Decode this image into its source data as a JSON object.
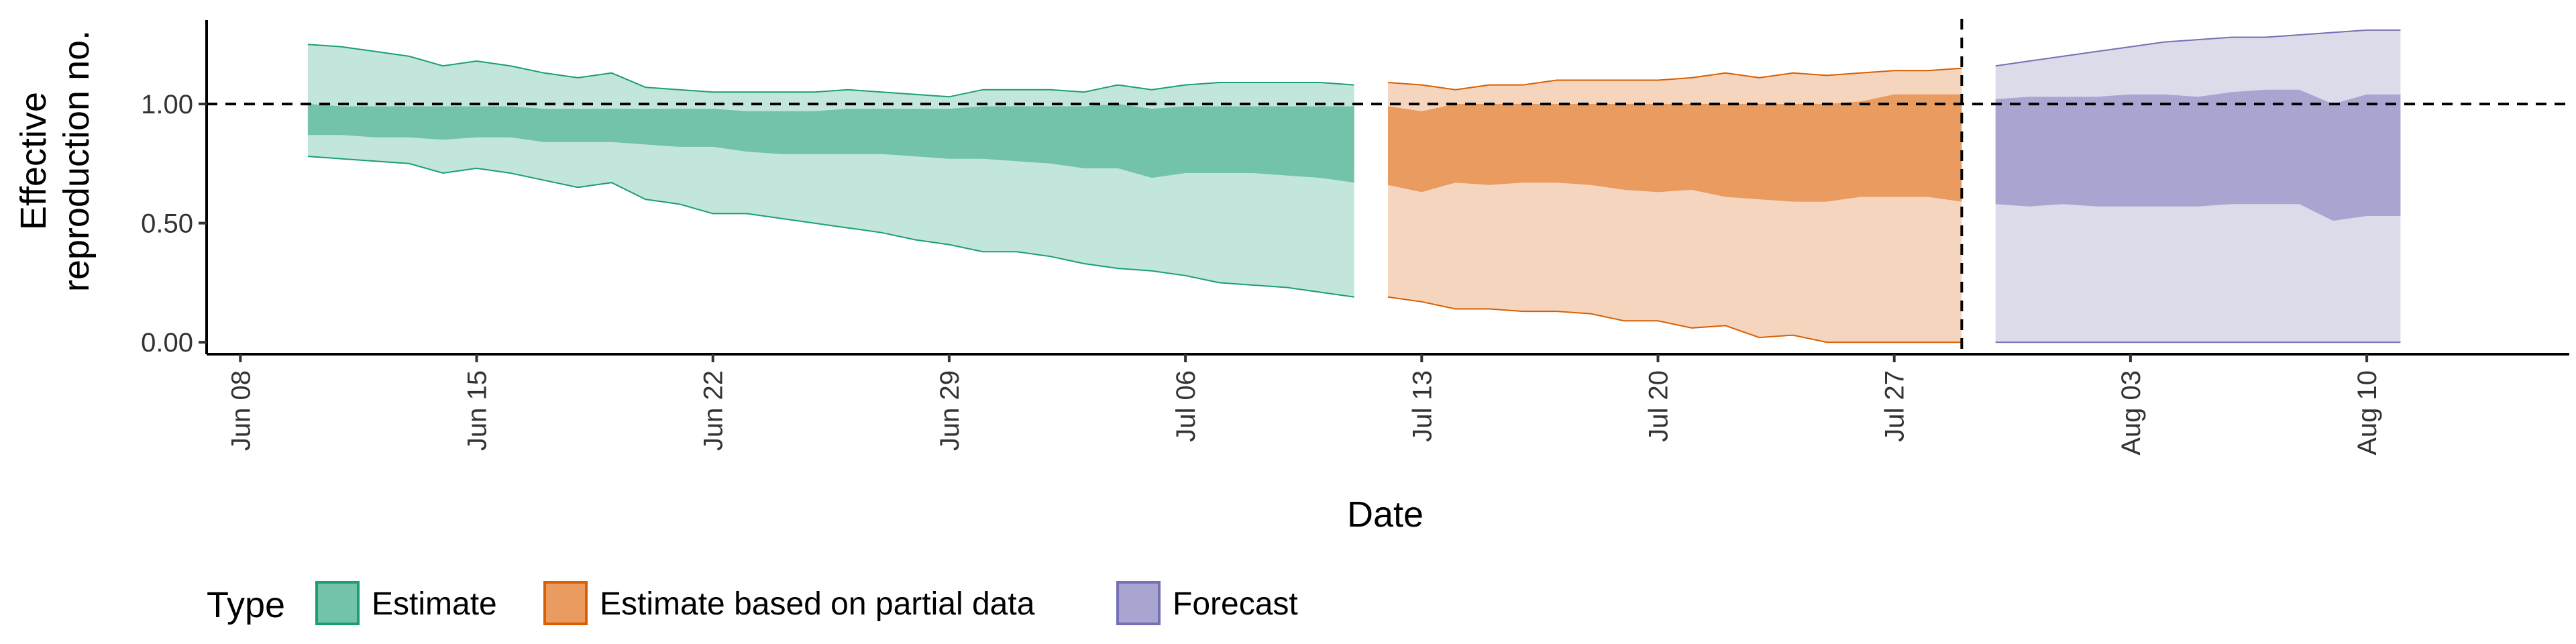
{
  "chart_data": {
    "type": "area",
    "xlabel": "Date",
    "ylabel_lines": [
      "Effective",
      "reproduction no."
    ],
    "reference_line_y": 1.0,
    "ylim": [
      -0.05,
      1.38
    ],
    "xlim": [
      "2020-06-07",
      "2020-08-16"
    ],
    "x_ticks": [
      {
        "date": "2020-06-08",
        "label": "Jun 08"
      },
      {
        "date": "2020-06-15",
        "label": "Jun 15"
      },
      {
        "date": "2020-06-22",
        "label": "Jun 22"
      },
      {
        "date": "2020-06-29",
        "label": "Jun 29"
      },
      {
        "date": "2020-07-06",
        "label": "Jul 06"
      },
      {
        "date": "2020-07-13",
        "label": "Jul 13"
      },
      {
        "date": "2020-07-20",
        "label": "Jul 20"
      },
      {
        "date": "2020-07-27",
        "label": "Jul 27"
      },
      {
        "date": "2020-08-03",
        "label": "Aug 03"
      },
      {
        "date": "2020-08-10",
        "label": "Aug 10"
      }
    ],
    "y_ticks": [
      {
        "value": 0.0,
        "label": "0.00"
      },
      {
        "value": 0.5,
        "label": "0.50"
      },
      {
        "value": 1.0,
        "label": "1.00"
      }
    ],
    "vertical_marker_date": "2020-07-29",
    "grid": false,
    "legend": {
      "title": "Type",
      "placement": "bottom-left"
    },
    "series": [
      {
        "name": "Estimate",
        "color_outer": "#c3e6dc",
        "color_inner": "#72c3aa",
        "color_line": "#1b9e77",
        "points": [
          {
            "date": "2020-06-10",
            "lo90": 0.78,
            "hi90": 1.25,
            "lo50": 0.87,
            "hi50": 1.0
          },
          {
            "date": "2020-06-11",
            "lo90": 0.77,
            "hi90": 1.24,
            "lo50": 0.87,
            "hi50": 0.99
          },
          {
            "date": "2020-06-12",
            "lo90": 0.76,
            "hi90": 1.22,
            "lo50": 0.86,
            "hi50": 0.99
          },
          {
            "date": "2020-06-13",
            "lo90": 0.75,
            "hi90": 1.2,
            "lo50": 0.86,
            "hi50": 0.99
          },
          {
            "date": "2020-06-14",
            "lo90": 0.71,
            "hi90": 1.16,
            "lo50": 0.85,
            "hi50": 0.99
          },
          {
            "date": "2020-06-15",
            "lo90": 0.73,
            "hi90": 1.18,
            "lo50": 0.86,
            "hi50": 0.99
          },
          {
            "date": "2020-06-16",
            "lo90": 0.71,
            "hi90": 1.16,
            "lo50": 0.86,
            "hi50": 0.99
          },
          {
            "date": "2020-06-17",
            "lo90": 0.68,
            "hi90": 1.13,
            "lo50": 0.84,
            "hi50": 0.98
          },
          {
            "date": "2020-06-18",
            "lo90": 0.65,
            "hi90": 1.11,
            "lo50": 0.84,
            "hi50": 0.98
          },
          {
            "date": "2020-06-19",
            "lo90": 0.67,
            "hi90": 1.13,
            "lo50": 0.84,
            "hi50": 0.98
          },
          {
            "date": "2020-06-20",
            "lo90": 0.6,
            "hi90": 1.07,
            "lo50": 0.83,
            "hi50": 0.98
          },
          {
            "date": "2020-06-21",
            "lo90": 0.58,
            "hi90": 1.06,
            "lo50": 0.82,
            "hi50": 0.98
          },
          {
            "date": "2020-06-22",
            "lo90": 0.54,
            "hi90": 1.05,
            "lo50": 0.82,
            "hi50": 0.98
          },
          {
            "date": "2020-06-23",
            "lo90": 0.54,
            "hi90": 1.05,
            "lo50": 0.8,
            "hi50": 0.97
          },
          {
            "date": "2020-06-24",
            "lo90": 0.52,
            "hi90": 1.05,
            "lo50": 0.79,
            "hi50": 0.97
          },
          {
            "date": "2020-06-25",
            "lo90": 0.5,
            "hi90": 1.05,
            "lo50": 0.79,
            "hi50": 0.97
          },
          {
            "date": "2020-06-26",
            "lo90": 0.48,
            "hi90": 1.06,
            "lo50": 0.79,
            "hi50": 0.98
          },
          {
            "date": "2020-06-27",
            "lo90": 0.46,
            "hi90": 1.05,
            "lo50": 0.79,
            "hi50": 0.98
          },
          {
            "date": "2020-06-28",
            "lo90": 0.43,
            "hi90": 1.04,
            "lo50": 0.78,
            "hi50": 0.98
          },
          {
            "date": "2020-06-29",
            "lo90": 0.41,
            "hi90": 1.03,
            "lo50": 0.77,
            "hi50": 0.98
          },
          {
            "date": "2020-06-30",
            "lo90": 0.38,
            "hi90": 1.06,
            "lo50": 0.77,
            "hi50": 0.99
          },
          {
            "date": "2020-07-01",
            "lo90": 0.38,
            "hi90": 1.06,
            "lo50": 0.76,
            "hi50": 0.99
          },
          {
            "date": "2020-07-02",
            "lo90": 0.36,
            "hi90": 1.06,
            "lo50": 0.75,
            "hi50": 0.99
          },
          {
            "date": "2020-07-03",
            "lo90": 0.33,
            "hi90": 1.05,
            "lo50": 0.73,
            "hi50": 0.99
          },
          {
            "date": "2020-07-04",
            "lo90": 0.31,
            "hi90": 1.08,
            "lo50": 0.73,
            "hi50": 1.0
          },
          {
            "date": "2020-07-05",
            "lo90": 0.3,
            "hi90": 1.06,
            "lo50": 0.69,
            "hi50": 0.98
          },
          {
            "date": "2020-07-06",
            "lo90": 0.28,
            "hi90": 1.08,
            "lo50": 0.71,
            "hi50": 0.99
          },
          {
            "date": "2020-07-07",
            "lo90": 0.25,
            "hi90": 1.09,
            "lo50": 0.71,
            "hi50": 0.99
          },
          {
            "date": "2020-07-08",
            "lo90": 0.24,
            "hi90": 1.09,
            "lo50": 0.71,
            "hi50": 0.99
          },
          {
            "date": "2020-07-09",
            "lo90": 0.23,
            "hi90": 1.09,
            "lo50": 0.7,
            "hi50": 0.99
          },
          {
            "date": "2020-07-10",
            "lo90": 0.21,
            "hi90": 1.09,
            "lo50": 0.69,
            "hi50": 0.99
          },
          {
            "date": "2020-07-11",
            "lo90": 0.19,
            "hi90": 1.08,
            "lo50": 0.67,
            "hi50": 0.99
          }
        ]
      },
      {
        "name": "Estimate based on partial data",
        "color_outer": "#f6d5bf",
        "color_inner": "#e99b60",
        "color_line": "#d95f02",
        "points": [
          {
            "date": "2020-07-12",
            "lo90": 0.19,
            "hi90": 1.09,
            "lo50": 0.66,
            "hi50": 0.99
          },
          {
            "date": "2020-07-13",
            "lo90": 0.17,
            "hi90": 1.08,
            "lo50": 0.63,
            "hi50": 0.97
          },
          {
            "date": "2020-07-14",
            "lo90": 0.14,
            "hi90": 1.06,
            "lo50": 0.67,
            "hi50": 1.0
          },
          {
            "date": "2020-07-15",
            "lo90": 0.14,
            "hi90": 1.08,
            "lo50": 0.66,
            "hi50": 1.0
          },
          {
            "date": "2020-07-16",
            "lo90": 0.13,
            "hi90": 1.08,
            "lo50": 0.67,
            "hi50": 1.0
          },
          {
            "date": "2020-07-17",
            "lo90": 0.13,
            "hi90": 1.1,
            "lo50": 0.67,
            "hi50": 1.0
          },
          {
            "date": "2020-07-18",
            "lo90": 0.12,
            "hi90": 1.1,
            "lo50": 0.66,
            "hi50": 1.0
          },
          {
            "date": "2020-07-19",
            "lo90": 0.09,
            "hi90": 1.1,
            "lo50": 0.64,
            "hi50": 1.0
          },
          {
            "date": "2020-07-20",
            "lo90": 0.09,
            "hi90": 1.1,
            "lo50": 0.63,
            "hi50": 1.0
          },
          {
            "date": "2020-07-21",
            "lo90": 0.06,
            "hi90": 1.11,
            "lo50": 0.64,
            "hi50": 1.0
          },
          {
            "date": "2020-07-22",
            "lo90": 0.07,
            "hi90": 1.13,
            "lo50": 0.61,
            "hi50": 1.0
          },
          {
            "date": "2020-07-23",
            "lo90": 0.02,
            "hi90": 1.11,
            "lo50": 0.6,
            "hi50": 1.0
          },
          {
            "date": "2020-07-24",
            "lo90": 0.03,
            "hi90": 1.13,
            "lo50": 0.59,
            "hi50": 1.0
          },
          {
            "date": "2020-07-25",
            "lo90": 0.0,
            "hi90": 1.12,
            "lo50": 0.59,
            "hi50": 1.0
          },
          {
            "date": "2020-07-26",
            "lo90": 0.0,
            "hi90": 1.13,
            "lo50": 0.61,
            "hi50": 1.01
          },
          {
            "date": "2020-07-27",
            "lo90": 0.0,
            "hi90": 1.14,
            "lo50": 0.61,
            "hi50": 1.04
          },
          {
            "date": "2020-07-28",
            "lo90": 0.0,
            "hi90": 1.14,
            "lo50": 0.61,
            "hi50": 1.04
          },
          {
            "date": "2020-07-29",
            "lo90": 0.0,
            "hi90": 1.15,
            "lo50": 0.59,
            "hi50": 1.04
          }
        ]
      },
      {
        "name": "Forecast",
        "color_outer": "#dcdbea",
        "color_inner": "#a8a5d0",
        "color_line": "#7570b3",
        "points": [
          {
            "date": "2020-07-30",
            "lo90": 0.0,
            "hi90": 1.16,
            "lo50": 0.58,
            "hi50": 1.02
          },
          {
            "date": "2020-07-31",
            "lo90": 0.0,
            "hi90": 1.18,
            "lo50": 0.57,
            "hi50": 1.03
          },
          {
            "date": "2020-08-01",
            "lo90": 0.0,
            "hi90": 1.2,
            "lo50": 0.58,
            "hi50": 1.03
          },
          {
            "date": "2020-08-02",
            "lo90": 0.0,
            "hi90": 1.22,
            "lo50": 0.57,
            "hi50": 1.03
          },
          {
            "date": "2020-08-03",
            "lo90": 0.0,
            "hi90": 1.24,
            "lo50": 0.57,
            "hi50": 1.04
          },
          {
            "date": "2020-08-04",
            "lo90": 0.0,
            "hi90": 1.26,
            "lo50": 0.57,
            "hi50": 1.04
          },
          {
            "date": "2020-08-05",
            "lo90": 0.0,
            "hi90": 1.27,
            "lo50": 0.57,
            "hi50": 1.03
          },
          {
            "date": "2020-08-06",
            "lo90": 0.0,
            "hi90": 1.28,
            "lo50": 0.58,
            "hi50": 1.05
          },
          {
            "date": "2020-08-07",
            "lo90": 0.0,
            "hi90": 1.28,
            "lo50": 0.58,
            "hi50": 1.06
          },
          {
            "date": "2020-08-08",
            "lo90": 0.0,
            "hi90": 1.29,
            "lo50": 0.58,
            "hi50": 1.06
          },
          {
            "date": "2020-08-09",
            "lo90": 0.0,
            "hi90": 1.3,
            "lo50": 0.51,
            "hi50": 1.0
          },
          {
            "date": "2020-08-10",
            "lo90": 0.0,
            "hi90": 1.31,
            "lo50": 0.53,
            "hi50": 1.04
          },
          {
            "date": "2020-08-11",
            "lo90": 0.0,
            "hi90": 1.31,
            "lo50": 0.53,
            "hi50": 1.04
          }
        ]
      }
    ]
  }
}
